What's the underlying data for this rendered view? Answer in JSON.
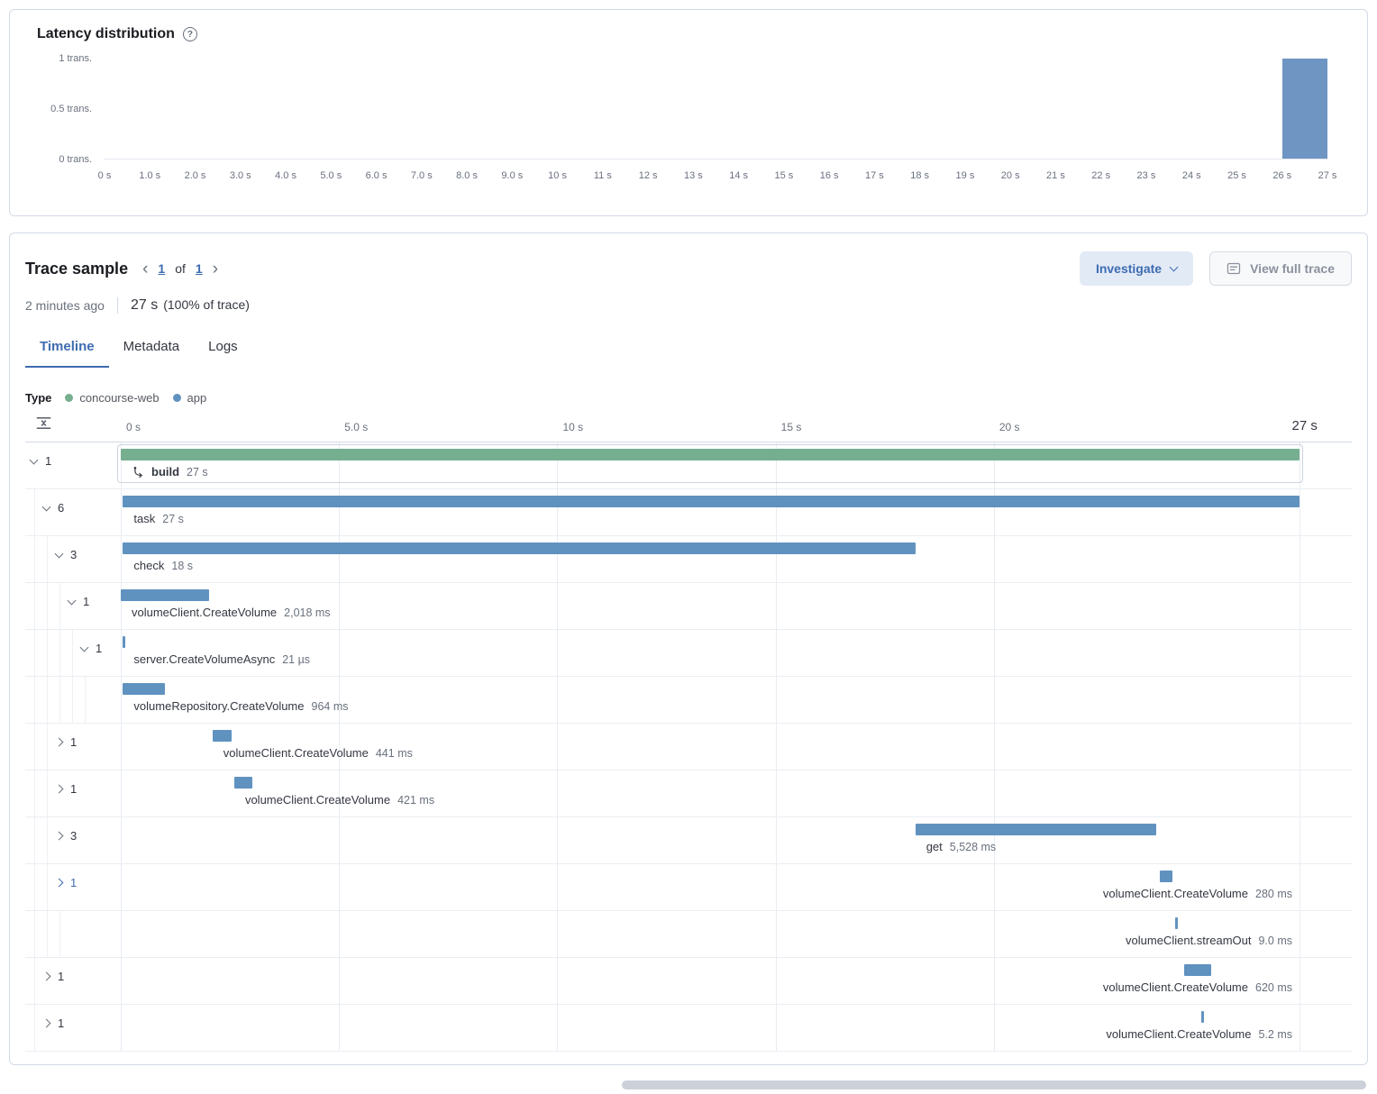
{
  "icons": {
    "help": "?",
    "prev": "‹",
    "next": "›"
  },
  "latency_panel": {
    "title": "Latency distribution",
    "chart_data": {
      "type": "bar",
      "title": "Latency distribution",
      "xlabel": "",
      "ylabel": "",
      "ylim": [
        0,
        1
      ],
      "y_ticks": [
        "1 trans.",
        "0.5 trans.",
        "0 trans."
      ],
      "x_range_seconds": [
        0,
        27
      ],
      "x_tick_labels": [
        "0 s",
        "1.0 s",
        "2.0 s",
        "3.0 s",
        "4.0 s",
        "5.0 s",
        "6.0 s",
        "7.0 s",
        "8.0 s",
        "9.0 s",
        "10 s",
        "11 s",
        "12 s",
        "13 s",
        "14 s",
        "15 s",
        "16 s",
        "17 s",
        "18 s",
        "19 s",
        "20 s",
        "21 s",
        "22 s",
        "23 s",
        "24 s",
        "25 s",
        "26 s",
        "27 s"
      ],
      "bars": [
        {
          "from_s": 26,
          "to_s": 27,
          "count": 1
        }
      ],
      "bar_color": "#6f95c3",
      "grid": "off",
      "legend_position": "none"
    }
  },
  "trace_panel": {
    "title": "Trace sample",
    "pager": {
      "page": "1",
      "of": "of",
      "total": "1"
    },
    "investigate_button": "Investigate",
    "view_full_trace_button": "View full trace",
    "timestamp": "2 minutes ago",
    "duration_value": "27 s",
    "duration_note": "(100% of trace)",
    "tabs": [
      {
        "label": "Timeline",
        "active": true
      },
      {
        "label": "Metadata",
        "active": false
      },
      {
        "label": "Logs",
        "active": false
      }
    ],
    "legend": {
      "title": "Type",
      "items": [
        {
          "label": "concourse-web",
          "color": "#76ae90"
        },
        {
          "label": "app",
          "color": "#6092c0"
        }
      ]
    },
    "timeline": {
      "total_seconds": 27,
      "ruler_ticks": [
        {
          "label": "0 s",
          "seconds": 0
        },
        {
          "label": "5.0 s",
          "seconds": 5
        },
        {
          "label": "10 s",
          "seconds": 10
        },
        {
          "label": "15 s",
          "seconds": 15
        },
        {
          "label": "20 s",
          "seconds": 20
        },
        {
          "label": "27 s",
          "seconds": 27,
          "emphasis": true
        }
      ],
      "rows": [
        {
          "toggle": "open",
          "count": "1",
          "indent": 0,
          "service": "concourse-web",
          "name": "build",
          "duration": "27 s",
          "start_s": 0,
          "dur_s": 27,
          "bold": true,
          "icon": "transaction",
          "focused": true
        },
        {
          "toggle": "open",
          "count": "6",
          "indent": 1,
          "service": "app",
          "name": "task",
          "duration": "27 s",
          "start_s": 0.05,
          "dur_s": 26.95
        },
        {
          "toggle": "open",
          "count": "3",
          "indent": 2,
          "service": "app",
          "name": "check",
          "duration": "18 s",
          "start_s": 0.05,
          "dur_s": 18.15
        },
        {
          "toggle": "open",
          "count": "1",
          "indent": 3,
          "service": "app",
          "name": "volumeClient.CreateVolume",
          "duration": "2,018 ms",
          "start_s": 0,
          "dur_s": 2.018
        },
        {
          "toggle": "open",
          "count": "1",
          "indent": 4,
          "service": "app",
          "name": "server.CreateVolumeAsync",
          "duration": "21 µs",
          "start_s": 0.05,
          "dur_s": 2.1e-05
        },
        {
          "toggle": null,
          "count": null,
          "indent": 5,
          "service": "app",
          "name": "volumeRepository.CreateVolume",
          "duration": "964 ms",
          "start_s": 0.05,
          "dur_s": 0.964
        },
        {
          "toggle": "closed",
          "count": "1",
          "indent": 2,
          "service": "app",
          "name": "volumeClient.CreateVolume",
          "duration": "441 ms",
          "start_s": 2.1,
          "dur_s": 0.441
        },
        {
          "toggle": "closed",
          "count": "1",
          "indent": 2,
          "service": "app",
          "name": "volumeClient.CreateVolume",
          "duration": "421 ms",
          "start_s": 2.6,
          "dur_s": 0.421
        },
        {
          "toggle": "closed",
          "count": "3",
          "indent": 2,
          "service": "app",
          "name": "get",
          "duration": "5,528 ms",
          "start_s": 18.2,
          "dur_s": 5.528
        },
        {
          "toggle": "closed",
          "count": "1",
          "indent": 2,
          "service": "app",
          "name": "volumeClient.CreateVolume",
          "duration": "280 ms",
          "start_s": 23.8,
          "dur_s": 0.28,
          "selected": true,
          "label_align": "right"
        },
        {
          "toggle": null,
          "count": null,
          "indent": 3,
          "service": "app",
          "name": "volumeClient.streamOut",
          "duration": "9.0 ms",
          "start_s": 24.15,
          "dur_s": 0.009,
          "label_align": "right"
        },
        {
          "toggle": "closed",
          "count": "1",
          "indent": 1,
          "service": "app",
          "name": "volumeClient.CreateVolume",
          "duration": "620 ms",
          "start_s": 24.35,
          "dur_s": 0.62,
          "label_align": "right"
        },
        {
          "toggle": "closed",
          "count": "1",
          "indent": 1,
          "service": "app",
          "name": "volumeClient.CreateVolume",
          "duration": "5.2 ms",
          "start_s": 24.75,
          "dur_s": 0.0052,
          "label_align": "right"
        }
      ]
    }
  }
}
